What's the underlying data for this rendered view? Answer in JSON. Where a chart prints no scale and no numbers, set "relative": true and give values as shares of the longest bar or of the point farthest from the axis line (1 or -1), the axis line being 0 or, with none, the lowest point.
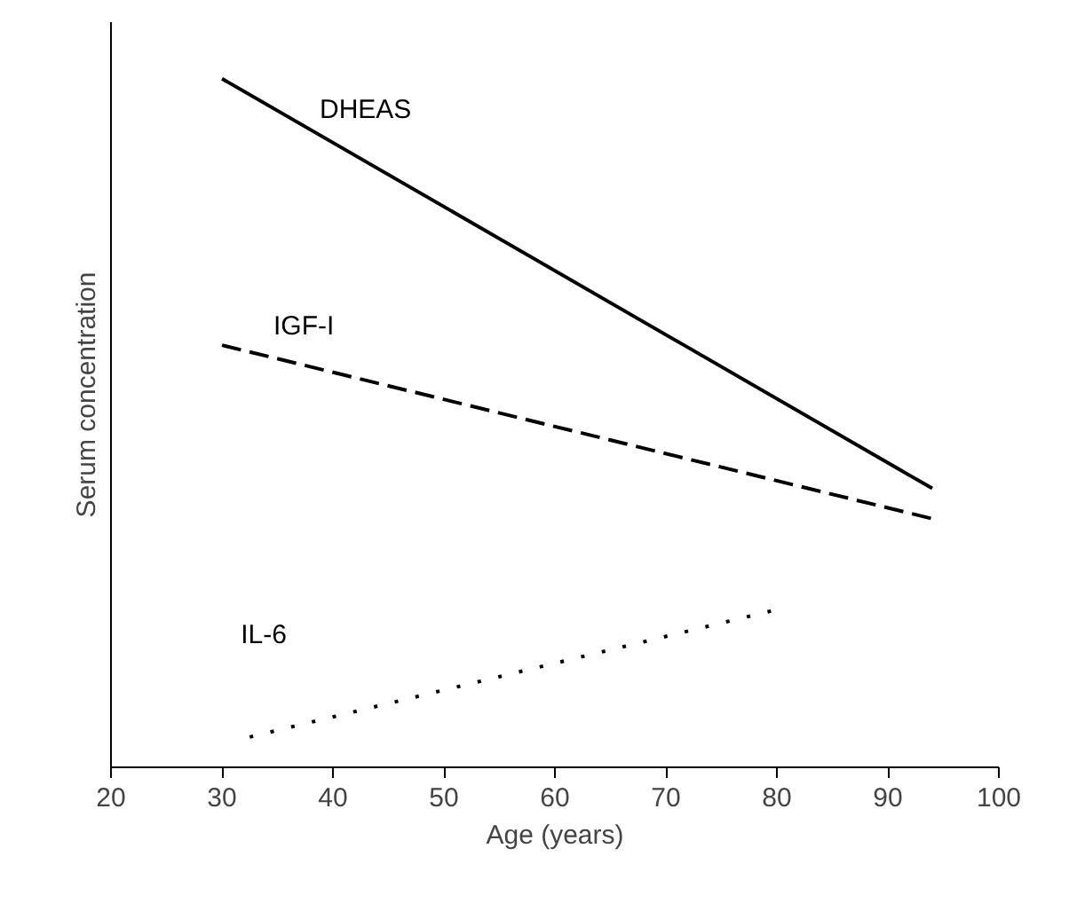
{
  "chart_data": {
    "type": "line",
    "relative": true,
    "xlabel": "Age (years)",
    "ylabel": "Serum concentration",
    "xlim": [
      20,
      100
    ],
    "xticks": [
      20,
      30,
      40,
      50,
      60,
      70,
      80,
      90,
      100
    ],
    "grid": false,
    "series": [
      {
        "name": "DHEAS",
        "color": "#000000",
        "line_style": "solid",
        "x": [
          30,
          94
        ],
        "values": [
          1,
          0.405
        ]
      },
      {
        "name": "IGF-I",
        "color": "#000000",
        "line_style": "dashed",
        "x": [
          30,
          94
        ],
        "values": [
          0.613,
          0.361
        ]
      },
      {
        "name": "IL-6",
        "color": "#000000",
        "line_style": "dotted",
        "x": [
          32.5,
          80
        ],
        "values": [
          0.044,
          0.229
        ]
      }
    ]
  }
}
